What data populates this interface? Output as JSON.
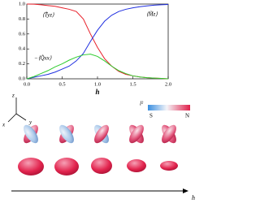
{
  "chart_data": {
    "type": "line",
    "x": [
      0,
      0.1,
      0.2,
      0.3,
      0.4,
      0.5,
      0.6,
      0.7,
      0.8,
      0.9,
      1.0,
      1.1,
      1.2,
      1.3,
      1.4,
      1.5,
      1.6,
      1.7,
      1.8,
      1.9,
      2.0
    ],
    "series": [
      {
        "name": "⟨T̃yz⟩",
        "color": "#e8202a",
        "values": [
          1.0,
          0.998,
          0.99,
          0.98,
          0.97,
          0.95,
          0.93,
          0.9,
          0.8,
          0.6,
          0.42,
          0.27,
          0.17,
          0.1,
          0.06,
          0.04,
          0.025,
          0.015,
          0.01,
          0.005,
          0.0
        ]
      },
      {
        "name": "⟨M̃z⟩",
        "color": "#1f2fe0",
        "values": [
          0,
          0.02,
          0.04,
          0.06,
          0.09,
          0.13,
          0.17,
          0.24,
          0.34,
          0.5,
          0.65,
          0.77,
          0.85,
          0.9,
          0.93,
          0.95,
          0.965,
          0.975,
          0.985,
          0.99,
          0.995
        ]
      },
      {
        "name": "−⟨Q̃xx⟩",
        "color": "#2ecc2e",
        "values": [
          0,
          0.03,
          0.07,
          0.11,
          0.16,
          0.2,
          0.25,
          0.29,
          0.32,
          0.33,
          0.3,
          0.24,
          0.17,
          0.11,
          0.07,
          0.04,
          0.025,
          0.015,
          0.01,
          0.005,
          0
        ]
      }
    ],
    "x_label": "h",
    "xlim": [
      0,
      2
    ],
    "ylim": [
      0,
      1
    ],
    "xticks": [
      {
        "value": 0,
        "label": "0.0"
      },
      0.5,
      {
        "value": 1,
        "label": "1.0"
      },
      1.5,
      {
        "value": 2,
        "label": "2.0"
      }
    ],
    "yticks": [
      {
        "value": 0,
        "label": "0.0"
      },
      0.2,
      0.4,
      0.6,
      0.8,
      {
        "value": 1,
        "label": "1.0"
      }
    ]
  },
  "figure": {
    "axes_labels": [
      "z",
      "x",
      "y"
    ],
    "colorbar": {
      "label": "l²",
      "min_label": "S",
      "max_label": "N"
    },
    "arrow_label": "h"
  }
}
